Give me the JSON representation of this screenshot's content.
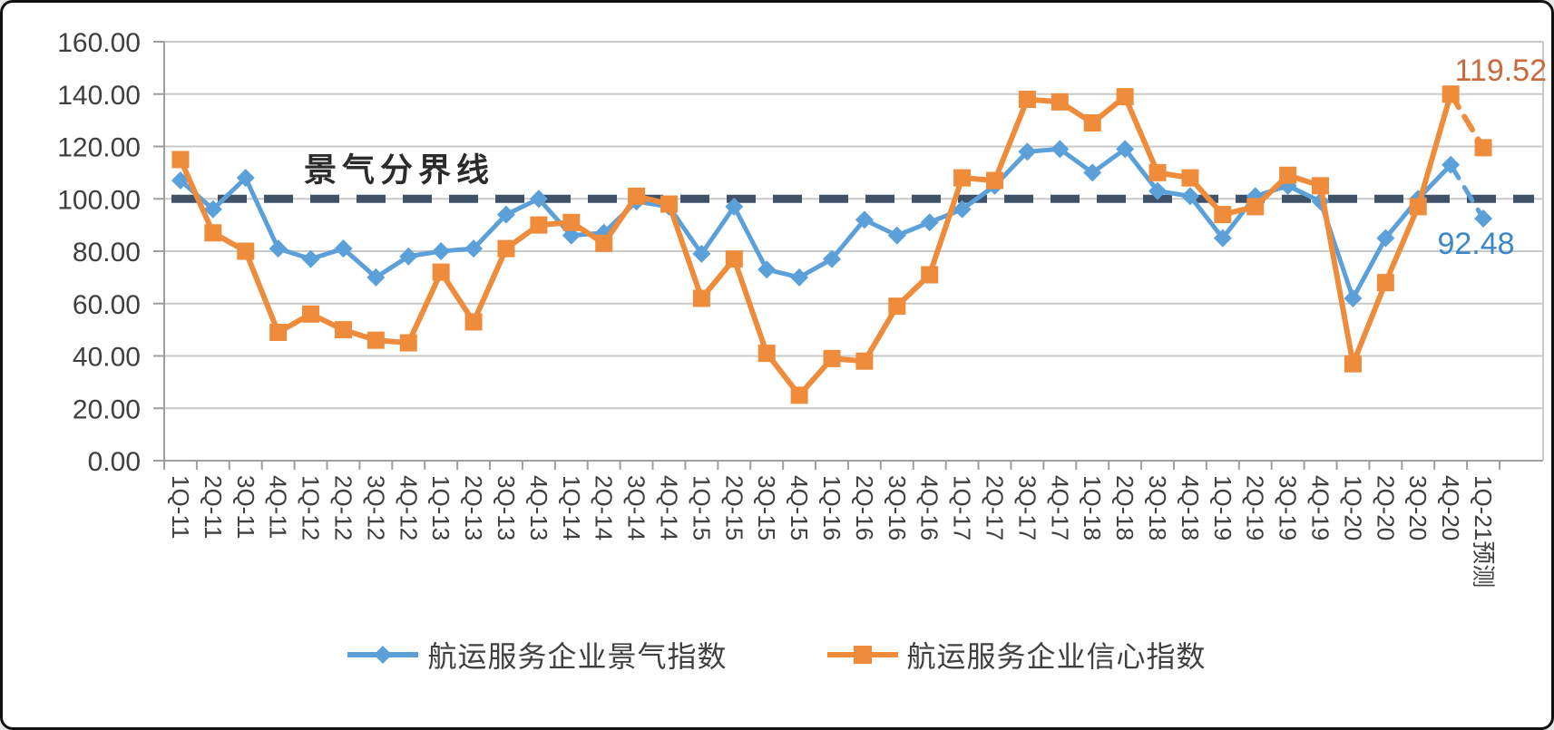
{
  "chart_data": {
    "type": "line",
    "title": "",
    "categories": [
      "1Q-11",
      "2Q-11",
      "3Q-11",
      "4Q-11",
      "1Q-12",
      "2Q-12",
      "3Q-12",
      "4Q-12",
      "1Q-13",
      "2Q-13",
      "3Q-13",
      "4Q-13",
      "1Q-14",
      "2Q-14",
      "3Q-14",
      "4Q-14",
      "1Q-15",
      "2Q-15",
      "3Q-15",
      "4Q-15",
      "1Q-16",
      "2Q-16",
      "3Q-16",
      "4Q-16",
      "1Q-17",
      "2Q-17",
      "3Q-17",
      "4Q-17",
      "1Q-18",
      "2Q-18",
      "3Q-18",
      "4Q-18",
      "1Q-19",
      "2Q-19",
      "3Q-19",
      "4Q-19",
      "1Q-20",
      "2Q-20",
      "3Q-20",
      "4Q-20",
      "1Q-21预测"
    ],
    "series": [
      {
        "name": "航运服务企业景气指数",
        "color": "#5BA0D8",
        "marker": "diamond",
        "values": [
          107,
          96,
          108,
          81,
          77,
          81,
          70,
          78,
          80,
          81,
          94,
          100,
          86,
          87,
          99,
          97,
          79,
          97,
          73,
          70,
          77,
          92,
          86,
          91,
          96,
          105,
          118,
          119,
          110,
          119,
          103,
          101,
          85,
          101,
          105,
          99,
          62,
          85,
          100,
          113,
          92.48
        ],
        "last_segment_dashed": true
      },
      {
        "name": "航运服务企业信心指数",
        "color": "#EE8C3C",
        "marker": "square",
        "values": [
          115,
          87,
          80,
          49,
          56,
          50,
          46,
          45,
          72,
          53,
          81,
          90,
          91,
          83,
          101,
          98,
          62,
          77,
          41,
          25,
          39,
          38,
          59,
          71,
          108,
          107,
          138,
          137,
          129,
          139,
          110,
          108,
          94,
          97,
          109,
          105,
          37,
          68,
          97,
          140,
          119.52
        ],
        "last_segment_dashed": true
      }
    ],
    "reference_line": {
      "value": 100,
      "label": "景气分界线",
      "color": "#3F5268",
      "style": "dashed"
    },
    "annotations": [
      {
        "text": "119.52",
        "series": "航运服务企业信心指数",
        "category": "1Q-21预测",
        "value": 119.52,
        "color": "#C8693A"
      },
      {
        "text": "92.48",
        "series": "航运服务企业景气指数",
        "category": "1Q-21预测",
        "value": 92.48,
        "color": "#3A87C8"
      }
    ],
    "y_axis": {
      "min": 0,
      "max": 160,
      "step": 20,
      "ticks": [
        "0.00",
        "20.00",
        "40.00",
        "60.00",
        "80.00",
        "100.00",
        "120.00",
        "140.00",
        "160.00"
      ]
    },
    "x_axis": {
      "label_rotation_deg": 90
    },
    "legend_position": "bottom",
    "grid": true,
    "colors": {
      "gridline": "#C9C9C9",
      "axis": "#9E9E9E",
      "axis_text": "#3F3F3F",
      "reference_label_text": "#2B2B2B"
    }
  }
}
